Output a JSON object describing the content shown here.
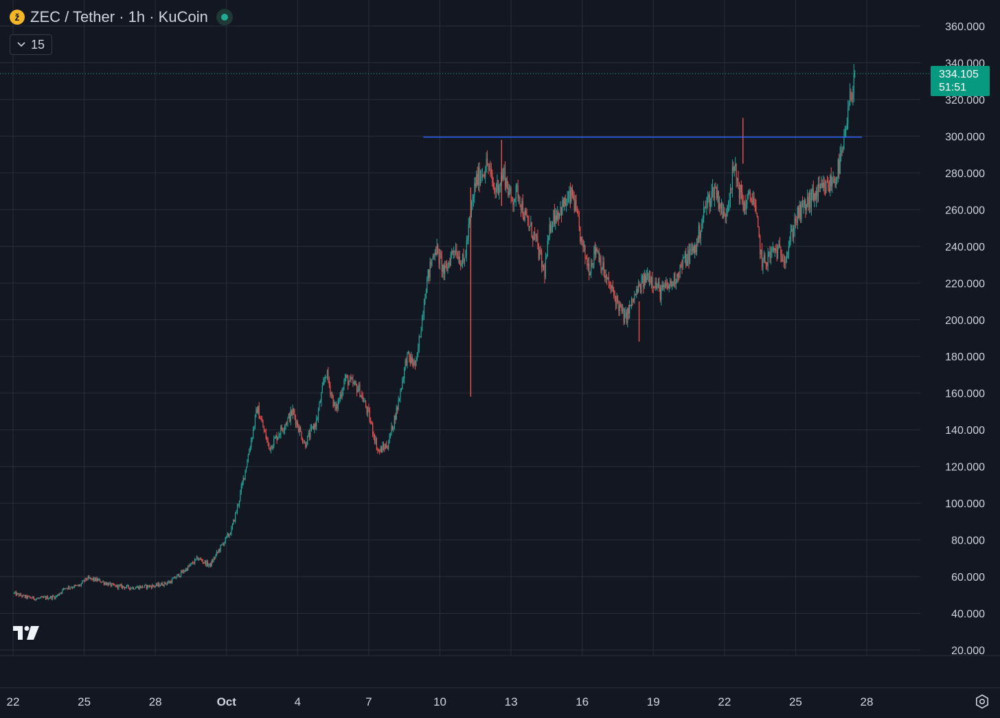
{
  "header": {
    "coin_icon_glyph": "ž",
    "symbol_title": "ZEC / Tether · 1h · KuCoin",
    "market_status": "open"
  },
  "indicator_toggle": {
    "label": "15"
  },
  "last_price": {
    "value": "334.105",
    "countdown": "51:51"
  },
  "colors": {
    "background": "#131722",
    "grid": "#2a2e39",
    "up": "#26a69a",
    "down": "#ef5350",
    "level_line": "#2962ff",
    "price_tag": "#089981"
  },
  "chart_data": {
    "type": "candlestick",
    "title": "ZEC / Tether · 1h · KuCoin",
    "y_axis": {
      "ticks": [
        20,
        40,
        60,
        80,
        100,
        120,
        140,
        160,
        180,
        200,
        220,
        240,
        260,
        280,
        300,
        320,
        340,
        360
      ],
      "tick_labels": [
        "20.000",
        "40.000",
        "60.000",
        "80.000",
        "100.000",
        "120.000",
        "140.000",
        "160.000",
        "180.000",
        "200.000",
        "220.000",
        "240.000",
        "260.000",
        "280.000",
        "300.000",
        "320.000",
        "340.000",
        "360.000"
      ],
      "range": [
        15,
        366
      ]
    },
    "x_axis": {
      "tick_labels": [
        "22",
        "25",
        "28",
        "Oct",
        "4",
        "7",
        "10",
        "13",
        "16",
        "19",
        "22",
        "25",
        "28"
      ],
      "tick_days": [
        0,
        3,
        6,
        9,
        12,
        15,
        18,
        21,
        24,
        27,
        30,
        33,
        36
      ],
      "range_days": [
        0,
        38.8
      ]
    },
    "price_path": [
      {
        "day": 0.0,
        "price": 51
      },
      {
        "day": 0.5,
        "price": 49
      },
      {
        "day": 1.0,
        "price": 48
      },
      {
        "day": 1.8,
        "price": 49
      },
      {
        "day": 2.2,
        "price": 54
      },
      {
        "day": 2.8,
        "price": 55
      },
      {
        "day": 3.1,
        "price": 59
      },
      {
        "day": 3.6,
        "price": 58
      },
      {
        "day": 4.2,
        "price": 55
      },
      {
        "day": 5.0,
        "price": 54
      },
      {
        "day": 6.0,
        "price": 55
      },
      {
        "day": 6.6,
        "price": 57
      },
      {
        "day": 7.2,
        "price": 63
      },
      {
        "day": 7.8,
        "price": 70
      },
      {
        "day": 8.3,
        "price": 66
      },
      {
        "day": 8.7,
        "price": 75
      },
      {
        "day": 9.2,
        "price": 85
      },
      {
        "day": 9.5,
        "price": 100
      },
      {
        "day": 9.9,
        "price": 125
      },
      {
        "day": 10.3,
        "price": 152
      },
      {
        "day": 10.8,
        "price": 130
      },
      {
        "day": 11.3,
        "price": 140
      },
      {
        "day": 11.8,
        "price": 150
      },
      {
        "day": 12.3,
        "price": 132
      },
      {
        "day": 12.8,
        "price": 145
      },
      {
        "day": 13.2,
        "price": 172
      },
      {
        "day": 13.6,
        "price": 150
      },
      {
        "day": 14.0,
        "price": 168
      },
      {
        "day": 14.6,
        "price": 162
      },
      {
        "day": 15.0,
        "price": 148
      },
      {
        "day": 15.4,
        "price": 128
      },
      {
        "day": 15.8,
        "price": 132
      },
      {
        "day": 16.2,
        "price": 152
      },
      {
        "day": 16.6,
        "price": 180
      },
      {
        "day": 17.0,
        "price": 175
      },
      {
        "day": 17.4,
        "price": 218
      },
      {
        "day": 17.8,
        "price": 240
      },
      {
        "day": 18.2,
        "price": 225
      },
      {
        "day": 18.6,
        "price": 240
      },
      {
        "day": 19.0,
        "price": 230
      },
      {
        "day": 19.5,
        "price": 275
      },
      {
        "day": 20.0,
        "price": 285
      },
      {
        "day": 20.3,
        "price": 270
      },
      {
        "day": 20.7,
        "price": 280
      },
      {
        "day": 21.0,
        "price": 265
      },
      {
        "day": 21.3,
        "price": 270
      },
      {
        "day": 21.6,
        "price": 255
      },
      {
        "day": 22.0,
        "price": 245
      },
      {
        "day": 22.4,
        "price": 225
      },
      {
        "day": 22.7,
        "price": 255
      },
      {
        "day": 23.2,
        "price": 262
      },
      {
        "day": 23.6,
        "price": 268
      },
      {
        "day": 24.0,
        "price": 240
      },
      {
        "day": 24.3,
        "price": 228
      },
      {
        "day": 24.6,
        "price": 240
      },
      {
        "day": 25.0,
        "price": 222
      },
      {
        "day": 25.4,
        "price": 212
      },
      {
        "day": 25.8,
        "price": 200
      },
      {
        "day": 26.3,
        "price": 215
      },
      {
        "day": 26.8,
        "price": 225
      },
      {
        "day": 27.3,
        "price": 215
      },
      {
        "day": 27.8,
        "price": 220
      },
      {
        "day": 28.3,
        "price": 232
      },
      {
        "day": 28.8,
        "price": 240
      },
      {
        "day": 29.2,
        "price": 262
      },
      {
        "day": 29.6,
        "price": 272
      },
      {
        "day": 30.0,
        "price": 255
      },
      {
        "day": 30.4,
        "price": 283
      },
      {
        "day": 30.8,
        "price": 262
      },
      {
        "day": 31.2,
        "price": 268
      },
      {
        "day": 31.6,
        "price": 230
      },
      {
        "day": 32.1,
        "price": 238
      },
      {
        "day": 32.6,
        "price": 235
      },
      {
        "day": 33.0,
        "price": 255
      },
      {
        "day": 33.4,
        "price": 262
      },
      {
        "day": 33.8,
        "price": 268
      },
      {
        "day": 34.3,
        "price": 272
      },
      {
        "day": 34.7,
        "price": 278
      },
      {
        "day": 35.0,
        "price": 292
      },
      {
        "day": 35.3,
        "price": 320
      },
      {
        "day": 35.5,
        "price": 334.1
      }
    ],
    "spikes": [
      {
        "day": 19.3,
        "low": 158,
        "high": 272
      },
      {
        "day": 30.78,
        "low": 285,
        "high": 310
      },
      {
        "day": 26.4,
        "low": 188,
        "high": 210
      },
      {
        "day": 20.6,
        "low": 262,
        "high": 298
      }
    ],
    "horizontal_level": {
      "price": 299.5,
      "from_day": 17.3,
      "to_day": 35.8
    },
    "current_price": 334.105,
    "grid": true
  }
}
